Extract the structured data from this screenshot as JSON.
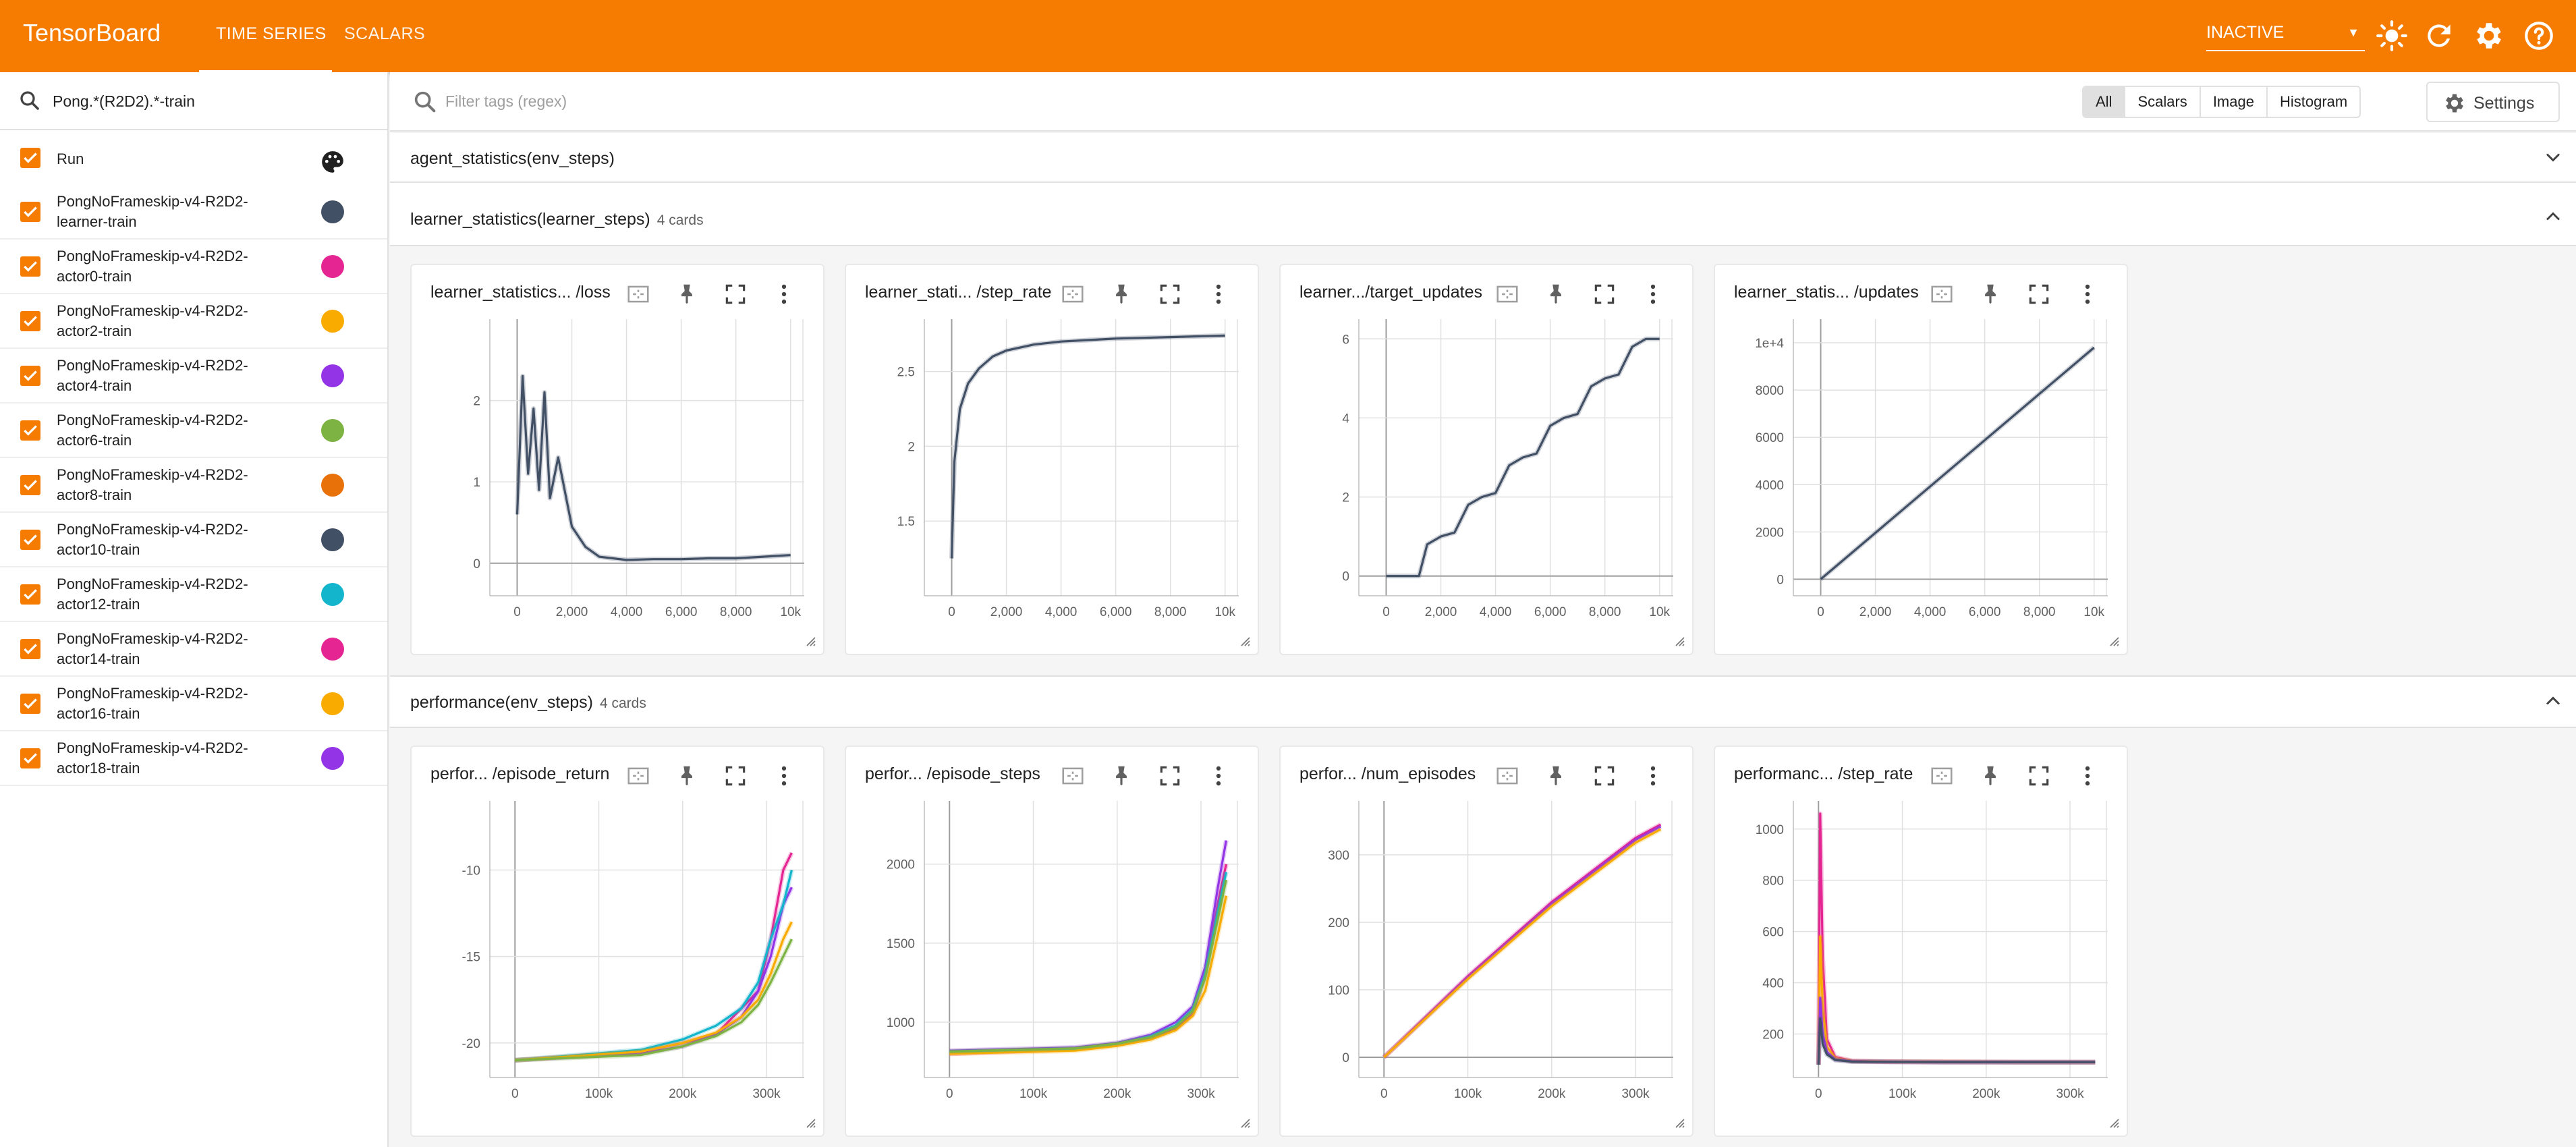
{
  "header": {
    "brand": "TensorBoard",
    "tabs": [
      "TIME SERIES",
      "SCALARS"
    ],
    "status_select": "INACTIVE",
    "icons": [
      "brightness-icon",
      "refresh-icon",
      "settings-icon",
      "help-icon"
    ]
  },
  "sidebar": {
    "run_filter": "Pong.*(R2D2).*-train",
    "header_label": "Run",
    "runs": [
      {
        "line1": "PongNoFrameskip-v4-R2D2-",
        "line2": "learner-train",
        "color": "#425066"
      },
      {
        "line1": "PongNoFrameskip-v4-R2D2-",
        "line2": "actor0-train",
        "color": "#e52592"
      },
      {
        "line1": "PongNoFrameskip-v4-R2D2-",
        "line2": "actor2-train",
        "color": "#f9ab00"
      },
      {
        "line1": "PongNoFrameskip-v4-R2D2-",
        "line2": "actor4-train",
        "color": "#9334e6"
      },
      {
        "line1": "PongNoFrameskip-v4-R2D2-",
        "line2": "actor6-train",
        "color": "#7cb342"
      },
      {
        "line1": "PongNoFrameskip-v4-R2D2-",
        "line2": "actor8-train",
        "color": "#e8710a"
      },
      {
        "line1": "PongNoFrameskip-v4-R2D2-",
        "line2": "actor10-train",
        "color": "#425066"
      },
      {
        "line1": "PongNoFrameskip-v4-R2D2-",
        "line2": "actor12-train",
        "color": "#12b5cb"
      },
      {
        "line1": "PongNoFrameskip-v4-R2D2-",
        "line2": "actor14-train",
        "color": "#e52592"
      },
      {
        "line1": "PongNoFrameskip-v4-R2D2-",
        "line2": "actor16-train",
        "color": "#f9ab00"
      },
      {
        "line1": "PongNoFrameskip-v4-R2D2-",
        "line2": "actor18-train",
        "color": "#9334e6"
      }
    ]
  },
  "toolbar": {
    "filter_placeholder": "Filter tags (regex)",
    "type_filters": [
      "All",
      "Scalars",
      "Image",
      "Histogram"
    ],
    "settings_label": "Settings"
  },
  "groups": [
    {
      "title": "agent_statistics(env_steps)",
      "count": ""
    },
    {
      "title": "learner_statistics(learner_steps)",
      "count": "4 cards"
    },
    {
      "title": "performance(env_steps)",
      "count": "4 cards"
    }
  ],
  "chart_data": [
    {
      "type": "line",
      "title": "learner_statistics... /loss",
      "x_ticks": [
        "0",
        "2,000",
        "4,000",
        "6,000",
        "8,000",
        "10k"
      ],
      "y_ticks": [
        "0",
        "1",
        "2"
      ],
      "xlim": [
        -1000,
        10500
      ],
      "ylim": [
        -0.4,
        3
      ],
      "series": [
        {
          "x": [
            0,
            200,
            400,
            600,
            800,
            1000,
            1200,
            1500,
            2000,
            2500,
            3000,
            4000,
            5000,
            6000,
            7000,
            8000,
            9000,
            10000
          ],
          "y": [
            0.6,
            2.3,
            1.1,
            1.9,
            0.9,
            2.1,
            0.8,
            1.3,
            0.45,
            0.2,
            0.08,
            0.04,
            0.05,
            0.05,
            0.06,
            0.06,
            0.08,
            0.1
          ]
        }
      ]
    },
    {
      "type": "line",
      "title": "learner_stati... /step_rate",
      "x_ticks": [
        "0",
        "2,000",
        "4,000",
        "6,000",
        "8,000",
        "10k"
      ],
      "y_ticks": [
        "1.5",
        "2",
        "2.5"
      ],
      "xlim": [
        -1000,
        10500
      ],
      "ylim": [
        1.0,
        2.85
      ],
      "series": [
        {
          "x": [
            0,
            100,
            300,
            600,
            1000,
            1500,
            2000,
            3000,
            4000,
            5000,
            6000,
            8000,
            10000
          ],
          "y": [
            1.25,
            1.9,
            2.25,
            2.42,
            2.52,
            2.6,
            2.64,
            2.68,
            2.7,
            2.71,
            2.72,
            2.73,
            2.74
          ]
        }
      ]
    },
    {
      "type": "line",
      "title": "learner.../target_updates",
      "x_ticks": [
        "0",
        "2,000",
        "4,000",
        "6,000",
        "8,000",
        "10k"
      ],
      "y_ticks": [
        "0",
        "2",
        "4",
        "6"
      ],
      "xlim": [
        -1000,
        10500
      ],
      "ylim": [
        -0.5,
        6.5
      ],
      "series": [
        {
          "x": [
            0,
            1200,
            1500,
            2000,
            2500,
            3000,
            3500,
            4000,
            4500,
            5000,
            5500,
            6000,
            6500,
            7000,
            7500,
            8000,
            8500,
            9000,
            9500,
            10000
          ],
          "y": [
            0,
            0,
            0.8,
            1,
            1.1,
            1.8,
            2,
            2.1,
            2.8,
            3,
            3.1,
            3.8,
            4,
            4.1,
            4.8,
            5,
            5.1,
            5.8,
            6,
            6
          ]
        }
      ]
    },
    {
      "type": "line",
      "title": "learner_statis... /updates",
      "x_ticks": [
        "0",
        "2,000",
        "4,000",
        "6,000",
        "8,000",
        "10k"
      ],
      "y_ticks": [
        "0",
        "2000",
        "4000",
        "6000",
        "8000",
        "1e+4"
      ],
      "xlim": [
        -1000,
        10500
      ],
      "ylim": [
        -700,
        11000
      ],
      "series": [
        {
          "x": [
            0,
            10000
          ],
          "y": [
            0,
            9800
          ]
        }
      ]
    },
    {
      "type": "line",
      "title": "perfor... /episode_return",
      "x_ticks": [
        "0",
        "100k",
        "200k",
        "300k"
      ],
      "y_ticks": [
        "-20",
        "-15",
        "-10"
      ],
      "xlim": [
        -30000,
        345000
      ],
      "ylim": [
        -22,
        -6
      ],
      "series": [
        {
          "color": "#e52592",
          "x": [
            0,
            150000,
            200000,
            240000,
            270000,
            290000,
            305000,
            320000,
            330000
          ],
          "y": [
            -21,
            -20.5,
            -20,
            -19.5,
            -18,
            -17,
            -14,
            -10,
            -9
          ]
        },
        {
          "color": "#9334e6",
          "x": [
            0,
            150000,
            200000,
            240000,
            270000,
            290000,
            305000,
            320000,
            330000
          ],
          "y": [
            -21,
            -20.6,
            -20.2,
            -19.5,
            -18.5,
            -17,
            -15,
            -12,
            -11
          ]
        },
        {
          "color": "#12b5cb",
          "x": [
            0,
            150000,
            200000,
            240000,
            270000,
            290000,
            305000,
            320000,
            330000
          ],
          "y": [
            -21,
            -20.4,
            -19.8,
            -19,
            -18,
            -16.5,
            -14,
            -12,
            -10
          ]
        },
        {
          "color": "#f9ab00",
          "x": [
            0,
            150000,
            200000,
            240000,
            270000,
            290000,
            305000,
            320000,
            330000
          ],
          "y": [
            -21,
            -20.5,
            -20,
            -19.4,
            -18.5,
            -17.5,
            -16,
            -14,
            -13
          ]
        },
        {
          "color": "#7cb342",
          "x": [
            0,
            150000,
            200000,
            240000,
            270000,
            290000,
            305000,
            320000,
            330000
          ],
          "y": [
            -21,
            -20.7,
            -20.2,
            -19.6,
            -18.8,
            -17.8,
            -16.5,
            -15,
            -14
          ]
        }
      ]
    },
    {
      "type": "line",
      "title": "perfor... /episode_steps",
      "x_ticks": [
        "0",
        "100k",
        "200k",
        "300k"
      ],
      "y_ticks": [
        "1000",
        "1500",
        "2000"
      ],
      "xlim": [
        -30000,
        345000
      ],
      "ylim": [
        650,
        2400
      ],
      "series": [
        {
          "color": "#e52592",
          "x": [
            0,
            150000,
            200000,
            240000,
            270000,
            290000,
            305000,
            320000,
            330000
          ],
          "y": [
            800,
            830,
            860,
            900,
            960,
            1050,
            1300,
            1750,
            2000
          ]
        },
        {
          "color": "#9334e6",
          "x": [
            0,
            150000,
            200000,
            240000,
            270000,
            290000,
            305000,
            320000,
            330000
          ],
          "y": [
            820,
            840,
            870,
            920,
            1000,
            1100,
            1350,
            1850,
            2150
          ]
        },
        {
          "color": "#12b5cb",
          "x": [
            0,
            150000,
            200000,
            240000,
            270000,
            290000,
            305000,
            320000,
            330000
          ],
          "y": [
            810,
            830,
            860,
            910,
            980,
            1080,
            1300,
            1700,
            1950
          ]
        },
        {
          "color": "#f9ab00",
          "x": [
            0,
            150000,
            200000,
            240000,
            270000,
            290000,
            305000,
            320000,
            330000
          ],
          "y": [
            800,
            820,
            850,
            890,
            950,
            1040,
            1200,
            1550,
            1800
          ]
        },
        {
          "color": "#7cb342",
          "x": [
            0,
            150000,
            200000,
            240000,
            270000,
            290000,
            305000,
            320000,
            330000
          ],
          "y": [
            815,
            835,
            865,
            905,
            970,
            1070,
            1280,
            1650,
            1900
          ]
        }
      ]
    },
    {
      "type": "line",
      "title": "perfor... /num_episodes",
      "x_ticks": [
        "0",
        "100k",
        "200k",
        "300k"
      ],
      "y_ticks": [
        "0",
        "100",
        "200",
        "300"
      ],
      "xlim": [
        -30000,
        345000
      ],
      "ylim": [
        -30,
        380
      ],
      "series": [
        {
          "color": "#e52592",
          "x": [
            0,
            100000,
            200000,
            300000,
            330000
          ],
          "y": [
            0,
            120,
            230,
            325,
            345
          ]
        },
        {
          "color": "#9334e6",
          "x": [
            0,
            100000,
            200000,
            300000,
            330000
          ],
          "y": [
            0,
            118,
            227,
            322,
            342
          ]
        },
        {
          "color": "#f9ab00",
          "x": [
            0,
            100000,
            200000,
            300000,
            330000
          ],
          "y": [
            0,
            116,
            224,
            318,
            338
          ]
        }
      ]
    },
    {
      "type": "line",
      "title": "performanc... /step_rate",
      "x_ticks": [
        "0",
        "100k",
        "200k",
        "300k"
      ],
      "y_ticks": [
        "200",
        "400",
        "600",
        "800",
        "1000"
      ],
      "xlim": [
        -30000,
        345000
      ],
      "ylim": [
        30,
        1110
      ],
      "series": [
        {
          "color": "#e52592",
          "x": [
            0,
            2000,
            5000,
            10000,
            20000,
            40000,
            80000,
            150000,
            250000,
            330000
          ],
          "y": [
            80,
            1060,
            500,
            180,
            110,
            95,
            92,
            91,
            90,
            90
          ]
        },
        {
          "color": "#f9ab00",
          "x": [
            0,
            2000,
            5000,
            10000,
            20000,
            40000,
            80000,
            150000,
            250000,
            330000
          ],
          "y": [
            80,
            580,
            300,
            150,
            105,
            94,
            92,
            91,
            90,
            90
          ]
        },
        {
          "color": "#9334e6",
          "x": [
            0,
            2000,
            5000,
            10000,
            20000,
            40000,
            80000,
            150000,
            250000,
            330000
          ],
          "y": [
            80,
            340,
            200,
            130,
            100,
            93,
            91,
            90,
            90,
            90
          ]
        },
        {
          "color": "#425066",
          "x": [
            0,
            2000,
            5000,
            10000,
            20000,
            40000,
            80000,
            150000,
            250000,
            330000
          ],
          "y": [
            80,
            260,
            160,
            120,
            98,
            92,
            91,
            90,
            90,
            90
          ]
        }
      ]
    }
  ]
}
